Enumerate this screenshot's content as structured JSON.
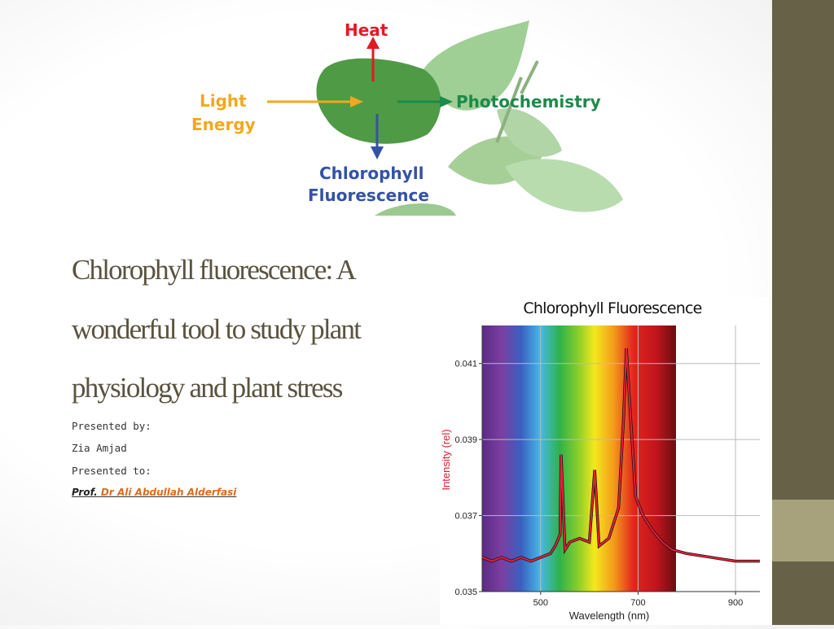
{
  "diagram": {
    "heat": "Heat",
    "light_energy": [
      "Light",
      "Energy"
    ],
    "photochemistry": "Photochemistry",
    "fluorescence": [
      "Chlorophyll",
      "Fluorescence"
    ]
  },
  "title": [
    "Chlorophyll fluorescence: A",
    "wonderful tool to study plant",
    "physiology and plant stress"
  ],
  "presenter": {
    "label": "Presented by:",
    "name": "Zia Amjad"
  },
  "recipient": {
    "label": "Presented to:",
    "prefix": "Prof.",
    "name": "Dr Ali Abdullah Alderfasi"
  },
  "chart_data": {
    "type": "line",
    "title": "Chlorophyll Fluorescence",
    "x_label": "Wavelength (nm)",
    "y_label": "Intensity (rel)",
    "x": [
      380,
      400,
      420,
      440,
      460,
      480,
      500,
      520,
      530,
      540,
      542,
      550,
      560,
      580,
      600,
      611,
      620,
      640,
      660,
      670,
      676,
      685,
      695,
      710,
      730,
      750,
      770,
      800,
      850,
      900,
      950
    ],
    "values": [
      0.0359,
      0.0358,
      0.0359,
      0.0358,
      0.0359,
      0.0358,
      0.0359,
      0.036,
      0.0362,
      0.0365,
      0.0386,
      0.0361,
      0.0363,
      0.0364,
      0.0363,
      0.0382,
      0.0362,
      0.0364,
      0.0372,
      0.0395,
      0.0414,
      0.0395,
      0.0375,
      0.037,
      0.0366,
      0.0363,
      0.0361,
      0.036,
      0.0359,
      0.0358,
      0.0358
    ],
    "color": "#e8203a",
    "xlim": [
      380,
      950
    ],
    "ylim": [
      0.035,
      0.042
    ],
    "xticks": [
      500,
      700,
      900
    ],
    "yticks": [
      0.035,
      0.037,
      0.039,
      0.041
    ],
    "grid": true
  }
}
